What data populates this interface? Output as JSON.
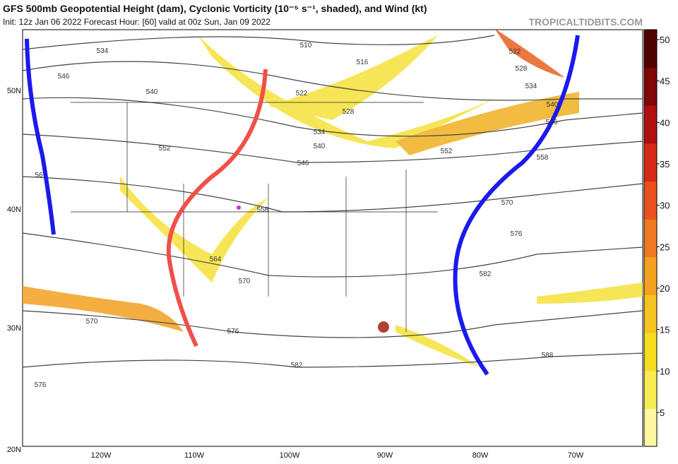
{
  "header": {
    "title": "GFS 500mb Geopotential Height (dam), Cyclonic Vorticity (10⁻⁵ s⁻¹, shaded), and Wind (kt)",
    "subtitle": "Init: 12z Jan 06 2022   Forecast Hour: [60]   valid at 00z Sun, Jan 09 2022",
    "site": "TROPICALTIDBITS.COM"
  },
  "map": {
    "lat_labels": [
      "50N",
      "40N",
      "30N",
      "20N"
    ],
    "lon_labels": [
      "120W",
      "110W",
      "100W",
      "90W",
      "80W",
      "70W"
    ],
    "contour_labels": [
      "534",
      "546",
      "540",
      "552",
      "56",
      "510",
      "516",
      "522",
      "528",
      "534",
      "540",
      "546",
      "552",
      "558",
      "564",
      "570",
      "576",
      "570",
      "576",
      "582",
      "522",
      "528",
      "534",
      "540",
      "546",
      "558",
      "570",
      "576",
      "582",
      "588"
    ]
  },
  "colorbar": {
    "ticks": [
      5,
      10,
      15,
      20,
      25,
      30,
      35,
      40,
      45,
      50
    ]
  }
}
